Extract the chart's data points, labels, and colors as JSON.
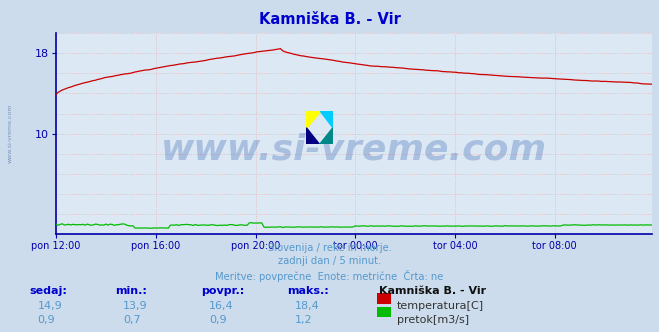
{
  "title": "Kamniška B. - Vir",
  "bg_color": "#ccdcec",
  "plot_bg_color": "#dce8f4",
  "grid_h_color": "#e8b4b4",
  "grid_v_color": "#e8b4b4",
  "title_color": "#0000cc",
  "axis_color": "#0000aa",
  "tick_label_color": "#0000aa",
  "watermark_text": "www.si-vreme.com",
  "watermark_color": "#2255aa",
  "watermark_alpha": 0.28,
  "watermark_fontsize": 26,
  "subtitle_lines": [
    "Slovenija / reke in morje.",
    "zadnji dan / 5 minut.",
    "Meritve: povprečne  Enote: metrične  Črta: ne"
  ],
  "subtitle_color": "#5599cc",
  "n_points": 288,
  "temp_color": "#cc0000",
  "flow_color": "#00bb00",
  "height_color": "#0000ff",
  "ylim_min": 0,
  "ylim_max": 20,
  "ytick_vals": [
    10,
    18
  ],
  "ytick_labels": [
    "10",
    "18"
  ],
  "xtick_labels": [
    "pon 12:00",
    "pon 16:00",
    "pon 20:00",
    "tor 00:00",
    "tor 04:00",
    "tor 08:00"
  ],
  "xtick_positions": [
    0,
    48,
    96,
    144,
    192,
    240
  ],
  "table_headers": [
    "sedaj:",
    "min.:",
    "povpr.:",
    "maks.:"
  ],
  "table_row1": [
    "14,9",
    "13,9",
    "16,4",
    "18,4"
  ],
  "table_row2": [
    "0,9",
    "0,7",
    "0,9",
    "1,2"
  ],
  "station_name": "Kamniška B. - Vir",
  "label_temp": "temperatura[C]",
  "label_flow": "pretok[m3/s]",
  "left_watermark": "www.si-vreme.com"
}
